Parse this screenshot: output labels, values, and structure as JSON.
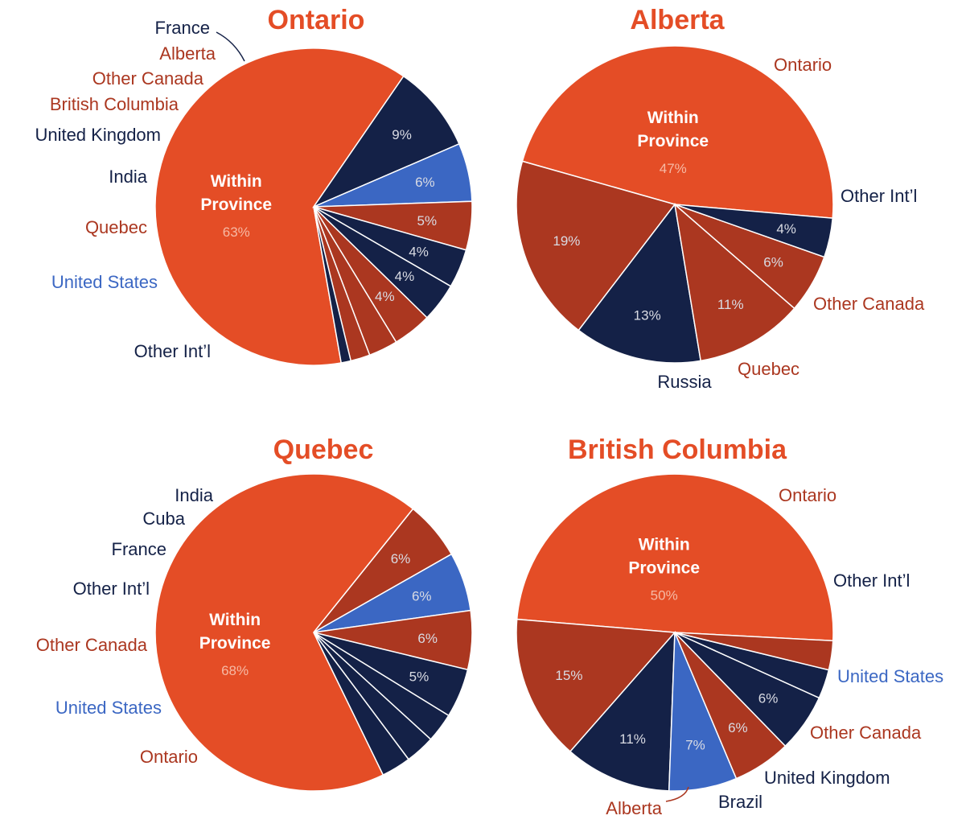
{
  "colors": {
    "within": "#e44d26",
    "canada": "#ab3720",
    "intl": "#142147",
    "us": "#3b67c3",
    "title": "#e44d26"
  },
  "chart_data": [
    {
      "type": "pie",
      "title": "Ontario",
      "center_label": [
        "Within",
        "Province"
      ],
      "slices": [
        {
          "label": "Within Province",
          "value": 63,
          "percent_label": "63%",
          "group": "within"
        },
        {
          "label": "Other Int’l",
          "value": 9,
          "percent_label": "9%",
          "group": "intl"
        },
        {
          "label": "United States",
          "value": 6,
          "percent_label": "6%",
          "group": "us"
        },
        {
          "label": "Quebec",
          "value": 5,
          "percent_label": "5%",
          "group": "canada"
        },
        {
          "label": "India",
          "value": 4,
          "percent_label": "4%",
          "group": "intl"
        },
        {
          "label": "United Kingdom",
          "value": 4,
          "percent_label": "4%",
          "group": "intl"
        },
        {
          "label": "British Columbia",
          "value": 4,
          "percent_label": "4%",
          "group": "canada"
        },
        {
          "label": "Other Canada",
          "value": 3,
          "percent_label": "",
          "group": "canada"
        },
        {
          "label": "Alberta",
          "value": 2,
          "percent_label": "",
          "group": "canada"
        },
        {
          "label": "France",
          "value": 1,
          "percent_label": "",
          "group": "intl"
        }
      ]
    },
    {
      "type": "pie",
      "title": "Alberta",
      "center_label": [
        "Within",
        "Province"
      ],
      "slices": [
        {
          "label": "Within Province",
          "value": 47,
          "percent_label": "47%",
          "group": "within"
        },
        {
          "label": "Ontario",
          "value": 19,
          "percent_label": "19%",
          "group": "canada"
        },
        {
          "label": "Other Int’l",
          "value": 13,
          "percent_label": "13%",
          "group": "intl"
        },
        {
          "label": "Other Canada",
          "value": 11,
          "percent_label": "11%",
          "group": "canada"
        },
        {
          "label": "Quebec",
          "value": 6,
          "percent_label": "6%",
          "group": "canada"
        },
        {
          "label": "Russia",
          "value": 4,
          "percent_label": "4%",
          "group": "intl"
        }
      ]
    },
    {
      "type": "pie",
      "title": "Quebec",
      "center_label": [
        "Within",
        "Province"
      ],
      "slices": [
        {
          "label": "Within Province",
          "value": 68,
          "percent_label": "68%",
          "group": "within"
        },
        {
          "label": "Ontario",
          "value": 6,
          "percent_label": "6%",
          "group": "canada"
        },
        {
          "label": "United States",
          "value": 6,
          "percent_label": "6%",
          "group": "us"
        },
        {
          "label": "Other Canada",
          "value": 6,
          "percent_label": "6%",
          "group": "canada"
        },
        {
          "label": "Other Int’l",
          "value": 5,
          "percent_label": "5%",
          "group": "intl"
        },
        {
          "label": "France",
          "value": 3,
          "percent_label": "",
          "group": "intl"
        },
        {
          "label": "Cuba",
          "value": 3,
          "percent_label": "",
          "group": "intl"
        },
        {
          "label": "India",
          "value": 3,
          "percent_label": "",
          "group": "intl"
        }
      ]
    },
    {
      "type": "pie",
      "title": "British Columbia",
      "center_label": [
        "Within",
        "Province"
      ],
      "slices": [
        {
          "label": "Within Province",
          "value": 50,
          "percent_label": "50%",
          "group": "within"
        },
        {
          "label": "Ontario",
          "value": 15,
          "percent_label": "15%",
          "group": "canada"
        },
        {
          "label": "Other Int’l",
          "value": 11,
          "percent_label": "11%",
          "group": "intl"
        },
        {
          "label": "United States",
          "value": 7,
          "percent_label": "7%",
          "group": "us"
        },
        {
          "label": "Other Canada",
          "value": 6,
          "percent_label": "6%",
          "group": "canada"
        },
        {
          "label": "United Kingdom",
          "value": 6,
          "percent_label": "6%",
          "group": "intl"
        },
        {
          "label": "Brazil",
          "value": 3,
          "percent_label": "",
          "group": "intl"
        },
        {
          "label": "Alberta",
          "value": 3,
          "percent_label": "",
          "group": "canada"
        }
      ]
    }
  ]
}
